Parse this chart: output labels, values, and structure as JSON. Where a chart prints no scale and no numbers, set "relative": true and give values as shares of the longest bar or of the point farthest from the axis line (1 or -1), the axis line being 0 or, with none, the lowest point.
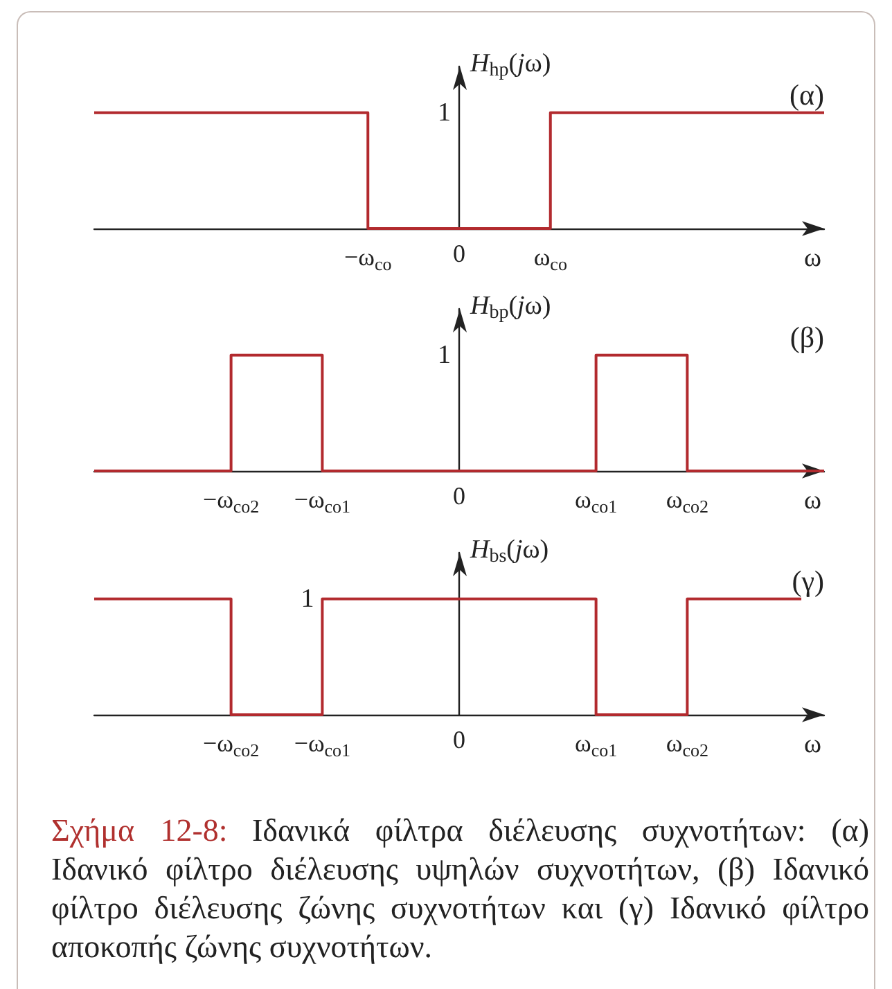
{
  "chart_data": [
    {
      "type": "step",
      "title": "(α)",
      "ylabel": "H$_{hp}$(jω)",
      "xlabel": "ω",
      "relative": true,
      "color": "#b22a2e",
      "categories": [
        null,
        null,
        null,
        null,
        null,
        null,
        "−ω$_{co}$",
        null,
        "0",
        null,
        "ω$_{co}$",
        null,
        null,
        null,
        null,
        null,
        null
      ],
      "values": [
        1,
        1,
        1,
        1,
        1,
        1,
        0,
        0,
        0,
        0,
        1,
        1,
        1,
        1,
        1,
        1,
        1
      ],
      "annotations": [
        "1"
      ]
    },
    {
      "type": "step",
      "title": "(β)",
      "ylabel": "H$_{bp}$(jω)",
      "xlabel": "ω",
      "relative": true,
      "color": "#b22a2e",
      "categories": [
        null,
        null,
        null,
        "−ω$_{co2}$",
        null,
        "−ω$_{co1}$",
        null,
        null,
        "0",
        null,
        null,
        "ω$_{co1}$",
        null,
        "ω$_{co2}$",
        null,
        null,
        null
      ],
      "values": [
        0,
        0,
        0,
        1,
        1,
        0,
        0,
        0,
        0,
        0,
        0,
        1,
        1,
        0,
        0,
        0,
        0
      ],
      "annotations": [
        "1"
      ]
    },
    {
      "type": "step",
      "title": "(γ)",
      "ylabel": "H$_{bs}$(jω)",
      "xlabel": "ω",
      "relative": true,
      "color": "#b22a2e",
      "categories": [
        null,
        null,
        null,
        null,
        null,
        null,
        "−ω$_{co2}$",
        null,
        null,
        null,
        "−ω$_{co1}$",
        null,
        null,
        null,
        null,
        null,
        "0",
        null,
        null,
        null,
        null,
        null,
        "ω$_{co1}$",
        null,
        null,
        null,
        "ω$_{co2}$",
        null,
        null,
        null,
        null,
        null,
        null
      ],
      "values": [
        1,
        1,
        1,
        1,
        1,
        1,
        0,
        0,
        0,
        0,
        1,
        1,
        1,
        1,
        1,
        1,
        1,
        1,
        1,
        1,
        1,
        1,
        0,
        0,
        0,
        0,
        1,
        1,
        1,
        1,
        1,
        1,
        null
      ],
      "annotations": [
        {
          "text": "1",
          "x": "−ω$_{co1}$",
          "y": 1
        }
      ]
    },
    {
      "type": "other",
      "annotations": [
        "Σχήμα 12-8:",
        "Ιδανικά φίλτρα διέλευσης συχνοτήτων: (α)",
        "Ιδανικό φίλτρο διέλευσης υψηλών συχνοτήτων, (β) Ιδανικό φίλτρο διέλευσης ζώνης συχνοτήτων και (γ) Ιδανικό φίλτρο αποκοπής ζώνης συχνοτήτων."
      ]
    }
  ]
}
